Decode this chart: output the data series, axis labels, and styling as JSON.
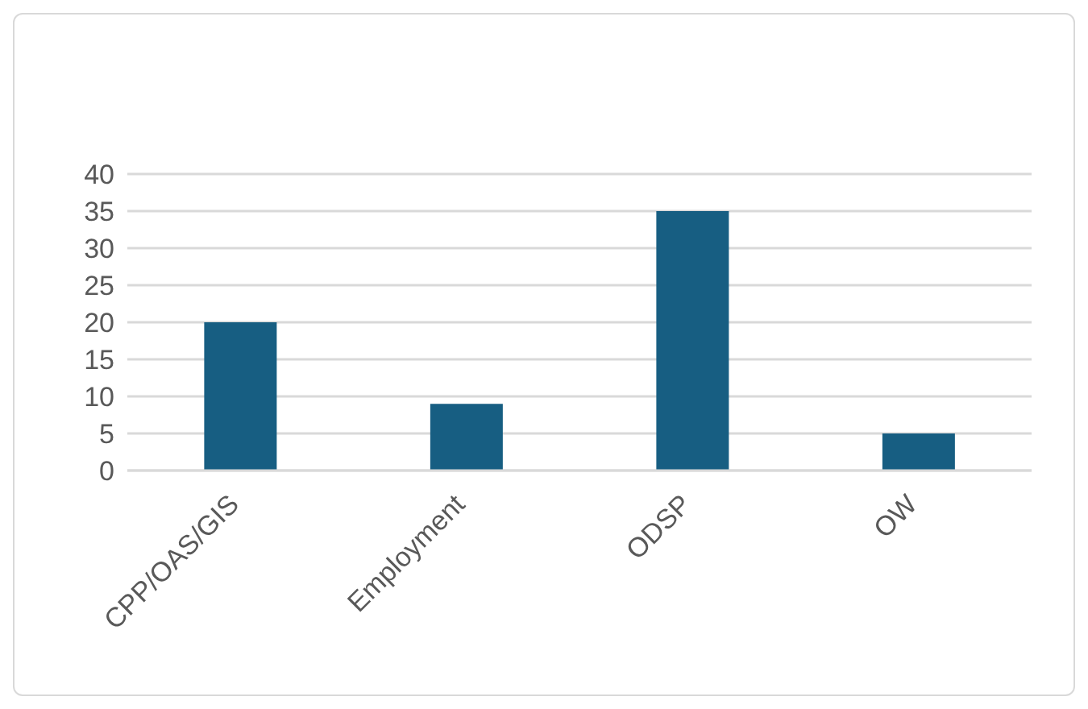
{
  "chart_data": {
    "type": "bar",
    "categories": [
      "CPP/OAS/GIS",
      "Employment",
      "ODSP",
      "OW"
    ],
    "values": [
      20,
      9,
      35,
      5
    ],
    "color": "#175e82",
    "ylim": [
      0,
      40
    ],
    "yticks": [
      0,
      5,
      10,
      15,
      20,
      25,
      30,
      35,
      40
    ],
    "grid": "y"
  }
}
